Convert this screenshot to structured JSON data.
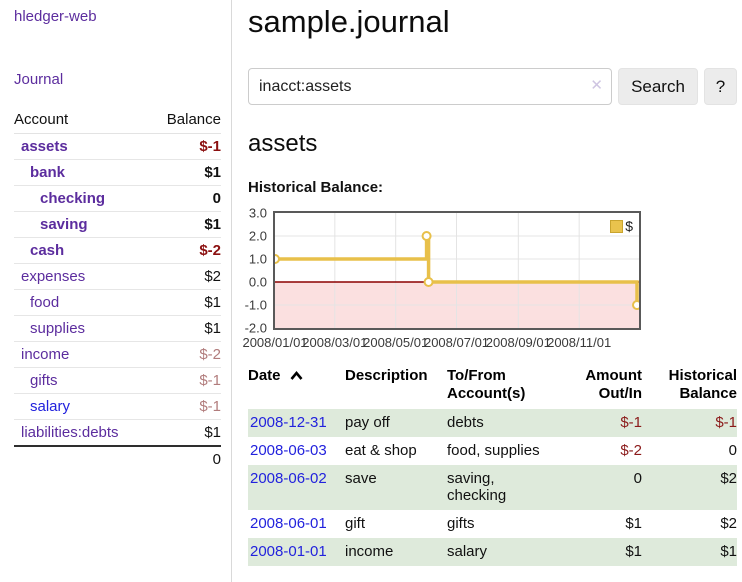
{
  "app": {
    "title": "hledger-web"
  },
  "sidebar": {
    "nav": [
      {
        "label": "Journal"
      }
    ],
    "accounts_table": {
      "headers": [
        "Account",
        "Balance"
      ],
      "rows": [
        {
          "account": "assets",
          "depth": 1,
          "bold": true,
          "balance": "$-1",
          "balance_style": "neg-strong"
        },
        {
          "account": "bank",
          "depth": 2,
          "bold": true,
          "balance": "$1",
          "balance_style": "pos"
        },
        {
          "account": "checking",
          "depth": 3,
          "bold": true,
          "balance": "0",
          "balance_style": "pos"
        },
        {
          "account": "saving",
          "depth": 3,
          "bold": true,
          "balance": "$1",
          "balance_style": "pos"
        },
        {
          "account": "cash",
          "depth": 2,
          "bold": true,
          "balance": "$-2",
          "balance_style": "neg-strong"
        },
        {
          "account": "expenses",
          "depth": 1,
          "bold": false,
          "balance": "$2",
          "balance_style": "pos"
        },
        {
          "account": "food",
          "depth": 2,
          "bold": false,
          "balance": "$1",
          "balance_style": "pos"
        },
        {
          "account": "supplies",
          "depth": 2,
          "bold": false,
          "balance": "$1",
          "balance_style": "pos"
        },
        {
          "account": "income",
          "depth": 1,
          "bold": false,
          "balance": "$-2",
          "balance_style": "neg-soft"
        },
        {
          "account": "gifts",
          "depth": 2,
          "bold": false,
          "balance": "$-1",
          "balance_style": "neg-soft"
        },
        {
          "account": "salary",
          "depth": 2,
          "bold": false,
          "balance": "$-1",
          "balance_style": "neg-soft",
          "link_color": "blue"
        },
        {
          "account": "liabilities:debts",
          "depth": 1,
          "bold": false,
          "balance": "$1",
          "balance_style": "pos"
        }
      ],
      "total": "0"
    }
  },
  "main": {
    "title": "sample.journal",
    "search": {
      "value": "inacct:assets",
      "clear_icon": "✕",
      "button": "Search",
      "help_button": "?"
    },
    "account_heading": "assets",
    "chart_label": "Historical Balance:"
  },
  "chart_data": {
    "type": "line",
    "step": true,
    "title": "Historical Balance",
    "series": [
      {
        "name": "$",
        "color": "#e8c04a",
        "points": [
          {
            "date": "2008/01/01",
            "x": 0,
            "y": 1
          },
          {
            "date": "2008/06/01",
            "x": 152,
            "y": 2
          },
          {
            "date": "2008/06/03",
            "x": 154,
            "y": 0
          },
          {
            "date": "2008/12/31",
            "x": 365,
            "y": -1
          }
        ]
      }
    ],
    "x_ticks": [
      {
        "label": "2008/01/01",
        "x": 0
      },
      {
        "label": "2008/03/01",
        "x": 60
      },
      {
        "label": "2008/05/01",
        "x": 121
      },
      {
        "label": "2008/07/01",
        "x": 182
      },
      {
        "label": "2008/09/01",
        "x": 244
      },
      {
        "label": "2008/11/01",
        "x": 305
      }
    ],
    "x_range": [
      0,
      365
    ],
    "y_ticks": [
      {
        "label": "3.0",
        "value": 3
      },
      {
        "label": "2.0",
        "value": 2
      },
      {
        "label": "1.0",
        "value": 1
      },
      {
        "label": "0.0",
        "value": 0
      },
      {
        "label": "-1.0",
        "value": -1
      },
      {
        "label": "-2.0",
        "value": -2
      }
    ],
    "y_range": [
      -2,
      3
    ],
    "legend": {
      "label": "$",
      "position": "top-right"
    },
    "grid": true,
    "grid_color": "#e4e4e4",
    "negative_region_fill": "#fbe0e0",
    "zero_line_color": "#8b0000"
  },
  "register": {
    "headers": {
      "date": "Date",
      "description": "Description",
      "accounts": "To/From Account(s)",
      "amount": "Amount Out/In",
      "balance": "Historical Balance"
    },
    "sort": {
      "column": "date",
      "direction": "asc"
    },
    "rows": [
      {
        "date": "2008-12-31",
        "description": "pay off",
        "accounts": "debts",
        "amount": "$-1",
        "amount_neg": true,
        "balance": "$-1",
        "balance_neg": true,
        "shaded": true
      },
      {
        "date": "2008-06-03",
        "description": "eat & shop",
        "accounts": "food, supplies",
        "amount": "$-2",
        "amount_neg": true,
        "balance": "0",
        "balance_neg": false,
        "shaded": false
      },
      {
        "date": "2008-06-02",
        "description": "save",
        "accounts": "saving, checking",
        "amount": "0",
        "amount_neg": false,
        "balance": "$2",
        "balance_neg": false,
        "shaded": true
      },
      {
        "date": "2008-06-01",
        "description": "gift",
        "accounts": "gifts",
        "amount": "$1",
        "amount_neg": false,
        "balance": "$2",
        "balance_neg": false,
        "shaded": false
      },
      {
        "date": "2008-01-01",
        "description": "income",
        "accounts": "salary",
        "amount": "$1",
        "amount_neg": false,
        "balance": "$1",
        "balance_neg": false,
        "shaded": true
      }
    ]
  },
  "colors": {
    "link_purple": "#5c2d9e",
    "link_blue": "#2222dd",
    "negative_strong": "#8b1010",
    "negative_soft": "#b17c7c",
    "register_negative": "#8b1a1a",
    "shaded_row_green": "#deeadb",
    "series_gold": "#e8c04a",
    "negative_region_pink": "#fbe0e0",
    "zero_line_dark_red": "#8b0000"
  }
}
